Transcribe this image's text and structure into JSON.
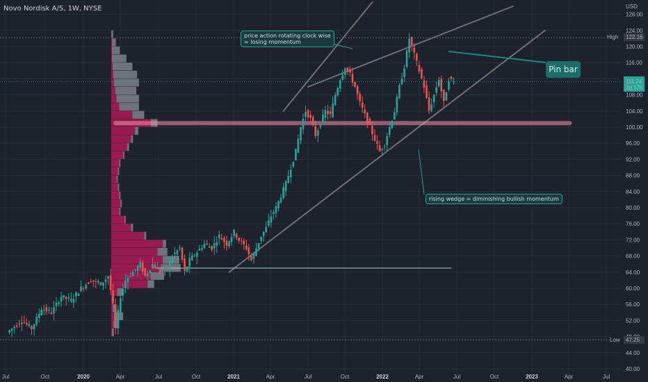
{
  "symbol_title": "Novo Nordisk A/S, 1W, NYSE",
  "currency": "USD",
  "colors": {
    "up": "#26a69a",
    "down": "#ef5350",
    "profile_up": "#8a8e98",
    "profile_down": "#c2185b",
    "wedge": "#8a8a8a",
    "support": "#a8e6cf",
    "poc": "#f48fb1"
  },
  "annotations": {
    "rotation_note": "price action rotating clock wise\n= losing momentum",
    "wedge_note": "rising wedge = diminishing bullish momentum",
    "pin_bar": "Pin bar"
  },
  "price_labels": {
    "high_label": "High",
    "high_value": "122.16",
    "low_label": "Low",
    "low_value": "47.25",
    "current_value": "111.24",
    "current_timer": "2d 17h"
  },
  "chart_data": {
    "type": "candlestick",
    "title": "Novo Nordisk A/S, 1W, NYSE",
    "y_axis_unit": "USD",
    "ylim": [
      40,
      130
    ],
    "y_ticks": [
      40,
      44,
      48,
      52,
      56,
      60,
      64,
      68,
      72,
      76,
      80,
      84,
      88,
      92,
      96,
      100,
      104,
      108,
      112,
      116,
      120,
      124,
      128
    ],
    "x_tick_labels": [
      "Jul",
      "Oct",
      "2020",
      "Apr",
      "Jul",
      "Oct",
      "2021",
      "Apr",
      "Jul",
      "Oct",
      "2022",
      "Apr",
      "Jul",
      "Oct",
      "2023",
      "Apr",
      "Jul"
    ],
    "x_tick_bold": [
      false,
      false,
      true,
      false,
      false,
      false,
      true,
      false,
      false,
      false,
      true,
      false,
      false,
      false,
      true,
      false,
      false
    ],
    "grid": true,
    "high": 122.16,
    "low": 47.25,
    "last": 111.24,
    "poc_level": 101,
    "support_level": 65,
    "price_path": [
      [
        0,
        49
      ],
      [
        6,
        52
      ],
      [
        10,
        50
      ],
      [
        14,
        55
      ],
      [
        18,
        54
      ],
      [
        22,
        58
      ],
      [
        26,
        57
      ],
      [
        30,
        60
      ],
      [
        34,
        62
      ],
      [
        38,
        61
      ],
      [
        41,
        63
      ],
      [
        43,
        56
      ],
      [
        44,
        50
      ],
      [
        46,
        58
      ],
      [
        48,
        62
      ],
      [
        51,
        64
      ],
      [
        54,
        66
      ],
      [
        56,
        63
      ],
      [
        59,
        66
      ],
      [
        62,
        64
      ],
      [
        65,
        65
      ],
      [
        67,
        68
      ],
      [
        70,
        70
      ],
      [
        72,
        64
      ],
      [
        74,
        67
      ],
      [
        77,
        69
      ],
      [
        80,
        71
      ],
      [
        83,
        70
      ],
      [
        86,
        73
      ],
      [
        89,
        71
      ],
      [
        92,
        74
      ],
      [
        94,
        72
      ],
      [
        97,
        70
      ],
      [
        99,
        67
      ],
      [
        101,
        70
      ],
      [
        103,
        73
      ],
      [
        105,
        75
      ],
      [
        107,
        78
      ],
      [
        109,
        80
      ],
      [
        111,
        83
      ],
      [
        113,
        86
      ],
      [
        115,
        90
      ],
      [
        117,
        94
      ],
      [
        119,
        100
      ],
      [
        121,
        104
      ],
      [
        123,
        102
      ],
      [
        125,
        98
      ],
      [
        127,
        101
      ],
      [
        129,
        104
      ],
      [
        131,
        103
      ],
      [
        133,
        108
      ],
      [
        135,
        112
      ],
      [
        137,
        115
      ],
      [
        139,
        113
      ],
      [
        141,
        110
      ],
      [
        143,
        106
      ],
      [
        145,
        103
      ],
      [
        147,
        100
      ],
      [
        149,
        97
      ],
      [
        151,
        94
      ],
      [
        153,
        96
      ],
      [
        155,
        100
      ],
      [
        157,
        104
      ],
      [
        159,
        110
      ],
      [
        161,
        115
      ],
      [
        163,
        122
      ],
      [
        165,
        118
      ],
      [
        167,
        114
      ],
      [
        169,
        110
      ],
      [
        171,
        104
      ],
      [
        173,
        108
      ],
      [
        175,
        112
      ],
      [
        177,
        106
      ],
      [
        179,
        112
      ],
      [
        181,
        111.24
      ]
    ],
    "volume_profile": [
      {
        "price": 49,
        "up": 3,
        "down": 1
      },
      {
        "price": 51,
        "up": 9,
        "down": 3
      },
      {
        "price": 53,
        "up": 14,
        "down": 4
      },
      {
        "price": 55,
        "up": 4,
        "down": 2
      },
      {
        "price": 57,
        "up": 3,
        "down": 1
      },
      {
        "price": 59,
        "up": 8,
        "down": 9
      },
      {
        "price": 61,
        "up": 10,
        "down": 55
      },
      {
        "price": 63,
        "up": 20,
        "down": 60
      },
      {
        "price": 65,
        "up": 30,
        "down": 75
      },
      {
        "price": 67,
        "up": 25,
        "down": 78
      },
      {
        "price": 69,
        "up": 15,
        "down": 70
      },
      {
        "price": 71,
        "up": 5,
        "down": 78
      },
      {
        "price": 73,
        "up": 3,
        "down": 50
      },
      {
        "price": 75,
        "up": 3,
        "down": 30
      },
      {
        "price": 77,
        "up": 2,
        "down": 20
      },
      {
        "price": 79,
        "up": 2,
        "down": 12
      },
      {
        "price": 81,
        "up": 2,
        "down": 14
      },
      {
        "price": 83,
        "up": 2,
        "down": 12
      },
      {
        "price": 85,
        "up": 2,
        "down": 10
      },
      {
        "price": 87,
        "up": 2,
        "down": 8
      },
      {
        "price": 89,
        "up": 2,
        "down": 10
      },
      {
        "price": 91,
        "up": 2,
        "down": 12
      },
      {
        "price": 93,
        "up": 2,
        "down": 18
      },
      {
        "price": 95,
        "up": 3,
        "down": 24
      },
      {
        "price": 97,
        "up": 3,
        "down": 30
      },
      {
        "price": 99,
        "up": 5,
        "down": 36
      },
      {
        "price": 101,
        "up": 10,
        "down": 60
      },
      {
        "price": 103,
        "up": 18,
        "down": 32
      },
      {
        "price": 105,
        "up": 30,
        "down": 12
      },
      {
        "price": 107,
        "up": 34,
        "down": 8
      },
      {
        "price": 109,
        "up": 32,
        "down": 6
      },
      {
        "price": 111,
        "up": 38,
        "down": 4
      },
      {
        "price": 113,
        "up": 36,
        "down": 3
      },
      {
        "price": 115,
        "up": 30,
        "down": 2
      },
      {
        "price": 117,
        "up": 22,
        "down": 1
      },
      {
        "price": 119,
        "up": 12,
        "down": 1
      },
      {
        "price": 121,
        "up": 6,
        "down": 1
      },
      {
        "price": 123,
        "up": 3,
        "down": 0
      }
    ],
    "trendlines": [
      {
        "name": "wedge-upper",
        "from": [
          122,
          110
        ],
        "to": [
          205,
          130
        ]
      },
      {
        "name": "wedge-inner",
        "from": [
          112,
          104
        ],
        "to": [
          148,
          131
        ]
      },
      {
        "name": "wedge-lower",
        "from": [
          90,
          64
        ],
        "to": [
          218,
          124
        ]
      },
      {
        "name": "support",
        "from": [
          60,
          65
        ],
        "to": [
          180,
          65
        ]
      },
      {
        "name": "poc",
        "from": [
          44,
          101
        ],
        "to": [
          228,
          101
        ]
      }
    ]
  }
}
